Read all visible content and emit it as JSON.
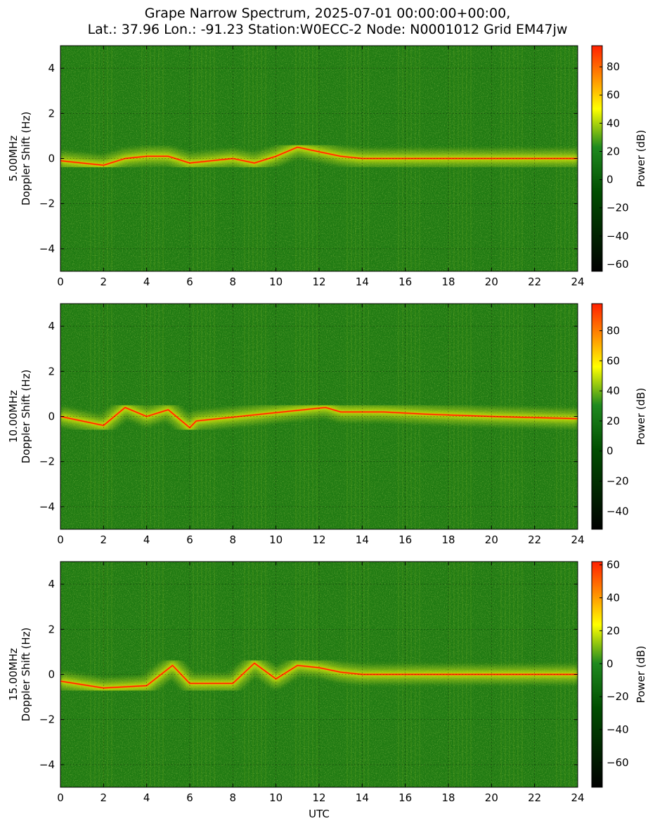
{
  "figure": {
    "title_line1": "Grape Narrow Spectrum, 2025-07-01 00:00:00+00:00,",
    "title_line2": "Lat.: 37.96 Lon.: -91.23 Station:W0ECC-2 Node: N0001012 Grid EM47jw",
    "xlabel": "UTC"
  },
  "colors": {
    "background_green": "#1f7a12",
    "dark_green": "#004d00",
    "yellow": "#ffff00",
    "orange": "#ff8c00",
    "red": "#ff2000",
    "black": "#000000"
  },
  "chart_data": [
    {
      "type": "heatmap",
      "ylabel": "5.00MHz\nDoppler Shift (Hz)",
      "ylabel_line1": "5.00MHz",
      "ylabel_line2": "Doppler Shift (Hz)",
      "xlim": [
        0,
        24
      ],
      "ylim": [
        -5,
        5
      ],
      "xticks": [
        0,
        2,
        4,
        6,
        8,
        10,
        12,
        14,
        16,
        18,
        20,
        22,
        24
      ],
      "yticks": [
        -4,
        -2,
        0,
        2,
        4
      ],
      "grid": true,
      "colorbar": {
        "label": "Power (dB)",
        "range": [
          -65,
          95
        ],
        "ticks": [
          -60,
          -40,
          -20,
          0,
          20,
          40,
          60,
          80
        ]
      },
      "doppler_trace": [
        [
          0,
          -0.1
        ],
        [
          1,
          -0.2
        ],
        [
          2,
          -0.3
        ],
        [
          3,
          0
        ],
        [
          4,
          0.1
        ],
        [
          5,
          0.1
        ],
        [
          6,
          -0.2
        ],
        [
          7,
          -0.1
        ],
        [
          8,
          0
        ],
        [
          9,
          -0.2
        ],
        [
          10,
          0.1
        ],
        [
          11,
          0.5
        ],
        [
          12,
          0.3
        ],
        [
          13,
          0.1
        ],
        [
          14,
          0
        ],
        [
          24,
          0
        ]
      ]
    },
    {
      "type": "heatmap",
      "ylabel": "10.00MHz\nDoppler Shift (Hz)",
      "ylabel_line1": "10.00MHz",
      "ylabel_line2": "Doppler Shift (Hz)",
      "xlim": [
        0,
        24
      ],
      "ylim": [
        -5,
        5
      ],
      "xticks": [
        0,
        2,
        4,
        6,
        8,
        10,
        12,
        14,
        16,
        18,
        20,
        22,
        24
      ],
      "yticks": [
        -4,
        -2,
        0,
        2,
        4
      ],
      "grid": true,
      "colorbar": {
        "label": "Power (dB)",
        "range": [
          -52,
          98
        ],
        "ticks": [
          -40,
          -20,
          0,
          20,
          40,
          60,
          80
        ]
      },
      "doppler_trace": [
        [
          0,
          0
        ],
        [
          1,
          -0.2
        ],
        [
          2,
          -0.4
        ],
        [
          3,
          0.4
        ],
        [
          4,
          0
        ],
        [
          5,
          0.3
        ],
        [
          6,
          -0.5
        ],
        [
          6.3,
          -0.2
        ],
        [
          12.3,
          0.4
        ],
        [
          13,
          0.2
        ],
        [
          15,
          0.2
        ],
        [
          17,
          0.1
        ],
        [
          20,
          0
        ],
        [
          24,
          -0.1
        ]
      ]
    },
    {
      "type": "heatmap",
      "ylabel": "15.00MHz\nDoppler Shift (Hz)",
      "ylabel_line1": "15.00MHz",
      "ylabel_line2": "Doppler Shift (Hz)",
      "xlim": [
        0,
        24
      ],
      "ylim": [
        -5,
        5
      ],
      "xticks": [
        0,
        2,
        4,
        6,
        8,
        10,
        12,
        14,
        16,
        18,
        20,
        22,
        24
      ],
      "yticks": [
        -4,
        -2,
        0,
        2,
        4
      ],
      "grid": true,
      "colorbar": {
        "label": "Power (dB)",
        "range": [
          -75,
          62
        ],
        "ticks": [
          -60,
          -40,
          -20,
          0,
          20,
          40,
          60
        ]
      },
      "doppler_trace": [
        [
          0,
          -0.3
        ],
        [
          2,
          -0.6
        ],
        [
          4,
          -0.5
        ],
        [
          5.2,
          0.4
        ],
        [
          6,
          -0.4
        ],
        [
          8,
          -0.4
        ],
        [
          9,
          0.5
        ],
        [
          10,
          -0.2
        ],
        [
          11,
          0.4
        ],
        [
          12,
          0.3
        ],
        [
          13,
          0.1
        ],
        [
          14,
          0
        ],
        [
          24,
          0
        ]
      ]
    }
  ]
}
